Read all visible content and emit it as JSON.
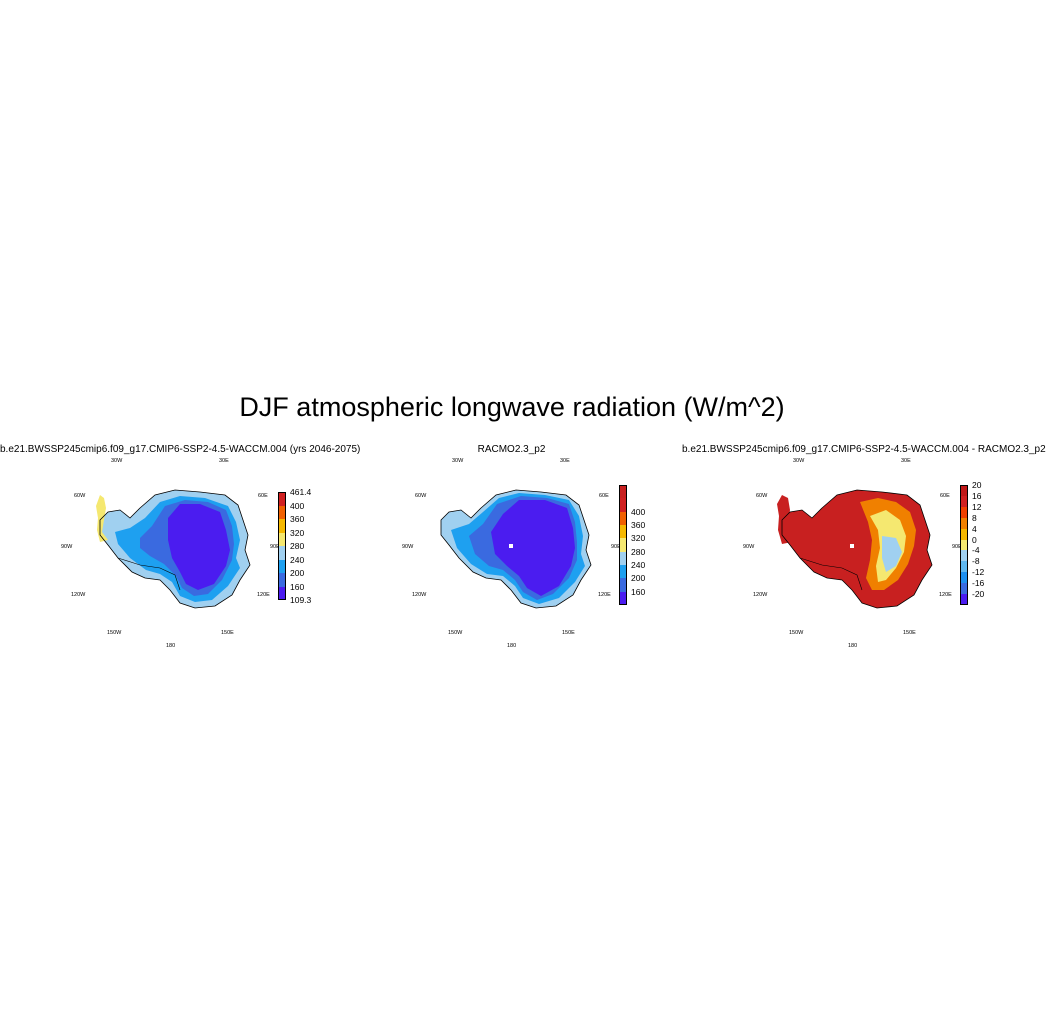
{
  "title": "DJF atmospheric longwave radiation (W/m^2)",
  "lon_labels": {
    "w30": "30W",
    "e30": "30E",
    "w60": "60W",
    "e60": "60E",
    "w90": "90W",
    "e90": "90E",
    "w120": "120W",
    "e120": "120E",
    "w150": "150W",
    "e150": "150E",
    "s180": "180"
  },
  "panels": [
    {
      "id": "model",
      "title": "b.e21.BWSSP245cmip6.f09_g17.CMIP6-SSP2-4.5-WACCM.004 (yrs 2046-2075)",
      "colorbar": {
        "colors": [
          "#4b1cf0",
          "#3a6ae0",
          "#1ea0f0",
          "#a0d0f0",
          "#f5e870",
          "#f5b800",
          "#f06000",
          "#d02020"
        ],
        "labels": [
          "109.3",
          "160",
          "200",
          "240",
          "280",
          "320",
          "360",
          "400",
          "461.4"
        ]
      }
    },
    {
      "id": "racmo",
      "title": "RACMO2.3_p2",
      "colorbar": {
        "colors": [
          "#4b1cf0",
          "#3a6ae0",
          "#1ea0f0",
          "#a0d0f0",
          "#f5e870",
          "#f5b800",
          "#f06000",
          "#d02020",
          "#c82020"
        ],
        "labels": [
          "160",
          "200",
          "240",
          "280",
          "320",
          "360",
          "400"
        ]
      }
    },
    {
      "id": "difference",
      "title": "b.e21.BWSSP245cmip6.f09_g17.CMIP6-SSP2-4.5-WACCM.004 - RACMO2.3_p2",
      "colorbar": {
        "colors": [
          "#4b1cf0",
          "#3a6ae0",
          "#1e90f0",
          "#60b8f0",
          "#a0d0f0",
          "#f5e870",
          "#f5b800",
          "#f08000",
          "#f04000",
          "#d02020",
          "#c01818"
        ],
        "labels": [
          "-20",
          "-16",
          "-12",
          "-8",
          "-4",
          "0",
          "4",
          "8",
          "12",
          "16",
          "20"
        ]
      }
    }
  ]
}
